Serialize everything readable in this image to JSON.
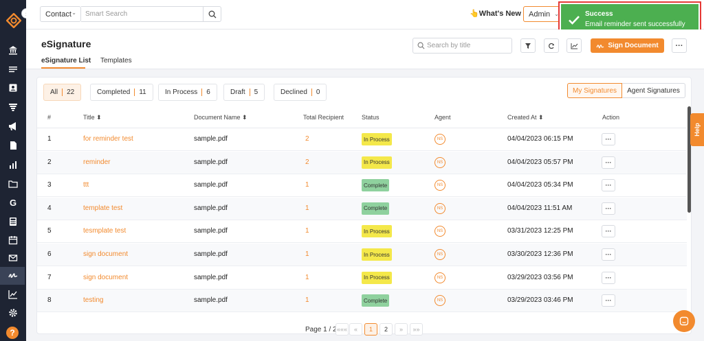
{
  "colors": {
    "accent": "#f28a2e",
    "sidebar": "#1e2433",
    "toast": "#4caf50",
    "toast_border": "#e53935"
  },
  "topbar": {
    "contact_label": "Contact",
    "search_placeholder": "Smart Search",
    "whats_new": "👆What's New",
    "admin_label": "Admin"
  },
  "toast": {
    "title": "Success",
    "message": "Email reminder sent successfully"
  },
  "page": {
    "title": "eSignature",
    "tabs": [
      "eSignature List",
      "Templates"
    ],
    "search_placeholder": "Search by title",
    "sign_button": "Sign Document"
  },
  "filters": [
    {
      "label": "All",
      "count": "22"
    },
    {
      "label": "Completed",
      "count": "11"
    },
    {
      "label": "In Process",
      "count": "6"
    },
    {
      "label": "Draft",
      "count": "5"
    },
    {
      "label": "Declined",
      "count": "0"
    }
  ],
  "signature_toggle": [
    "My Signatures",
    "Agent Signatures"
  ],
  "table": {
    "headers": [
      "#",
      "Title ⬍",
      "Document Name ⬍",
      "Total Recipient",
      "Status",
      "Agent",
      "Created At ⬍",
      "Action"
    ],
    "rows": [
      {
        "num": "1",
        "title": "for reminder test",
        "doc": "sample.pdf",
        "recipients": "2",
        "status": "In Process",
        "agent": "NS",
        "created": "04/04/2023 06:15 PM"
      },
      {
        "num": "2",
        "title": "reminder",
        "doc": "sample.pdf",
        "recipients": "2",
        "status": "In Process",
        "agent": "NS",
        "created": "04/04/2023 05:57 PM"
      },
      {
        "num": "3",
        "title": "ttt",
        "doc": "sample.pdf",
        "recipients": "1",
        "status": "Complete",
        "agent": "NS",
        "created": "04/04/2023 05:34 PM"
      },
      {
        "num": "4",
        "title": "template test",
        "doc": "sample.pdf",
        "recipients": "1",
        "status": "Complete",
        "agent": "NS",
        "created": "04/04/2023 11:51 AM"
      },
      {
        "num": "5",
        "title": "tesmplate test",
        "doc": "sample.pdf",
        "recipients": "1",
        "status": "In Process",
        "agent": "NS",
        "created": "03/31/2023 12:25 PM"
      },
      {
        "num": "6",
        "title": "sign document",
        "doc": "sample.pdf",
        "recipients": "1",
        "status": "In Process",
        "agent": "NS",
        "created": "03/30/2023 12:36 PM"
      },
      {
        "num": "7",
        "title": "sign document",
        "doc": "sample.pdf",
        "recipients": "1",
        "status": "In Process",
        "agent": "NS",
        "created": "03/29/2023 03:56 PM"
      },
      {
        "num": "8",
        "title": "testing",
        "doc": "sample.pdf",
        "recipients": "1",
        "status": "Complete",
        "agent": "NS",
        "created": "03/29/2023 03:46 PM"
      }
    ],
    "action_label": "···"
  },
  "pagination": {
    "label": "Page 1 / 2",
    "first": "«««",
    "prev": "«",
    "pages": [
      "1",
      "2"
    ],
    "next": "»",
    "last": "»»",
    "current": "1"
  },
  "help_tab": "Help",
  "sidebar_icons": [
    "bank-icon",
    "list-icon",
    "contact-card-icon",
    "funnel-icon",
    "megaphone-icon",
    "document-icon",
    "bar-chart-icon",
    "folder-icon",
    "google-icon",
    "calculator-icon",
    "calendar-icon",
    "mail-icon",
    "signature-icon",
    "line-chart-icon",
    "gear-icon"
  ]
}
